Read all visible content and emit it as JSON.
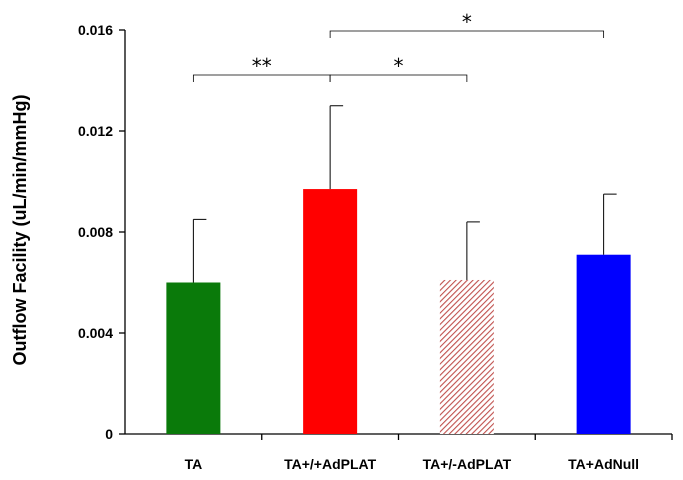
{
  "chart_data": {
    "type": "bar",
    "title": "",
    "xlabel": "",
    "ylabel": "Outflow Facility (uL/min/mmHg)",
    "ylim": [
      0,
      0.016
    ],
    "yticks": [
      {
        "value": 0,
        "label": "0"
      },
      {
        "value": 0.004,
        "label": "0.004"
      },
      {
        "value": 0.008,
        "label": "0.008"
      },
      {
        "value": 0.012,
        "label": "0.012"
      },
      {
        "value": 0.016,
        "label": "0.016"
      }
    ],
    "grid": false,
    "categories": [
      "TA",
      "TA+/+AdPLAT",
      "TA+/-AdPLAT",
      "TA+AdNull"
    ],
    "values": [
      0.006,
      0.0097,
      0.0061,
      0.0071
    ],
    "error_upper": [
      0.0025,
      0.0033,
      0.0023,
      0.0024
    ],
    "bar_colors": [
      "#0a7a0a",
      "#ff0000",
      "#c0504d",
      "#0000ff"
    ],
    "bar_fill": [
      "solid",
      "solid",
      "hatched",
      "solid"
    ],
    "significance": [
      {
        "from": 0,
        "to": 1,
        "label": "**"
      },
      {
        "from": 1,
        "to": 2,
        "label": "*"
      },
      {
        "from": 1,
        "to": 3,
        "label": "*"
      }
    ]
  }
}
